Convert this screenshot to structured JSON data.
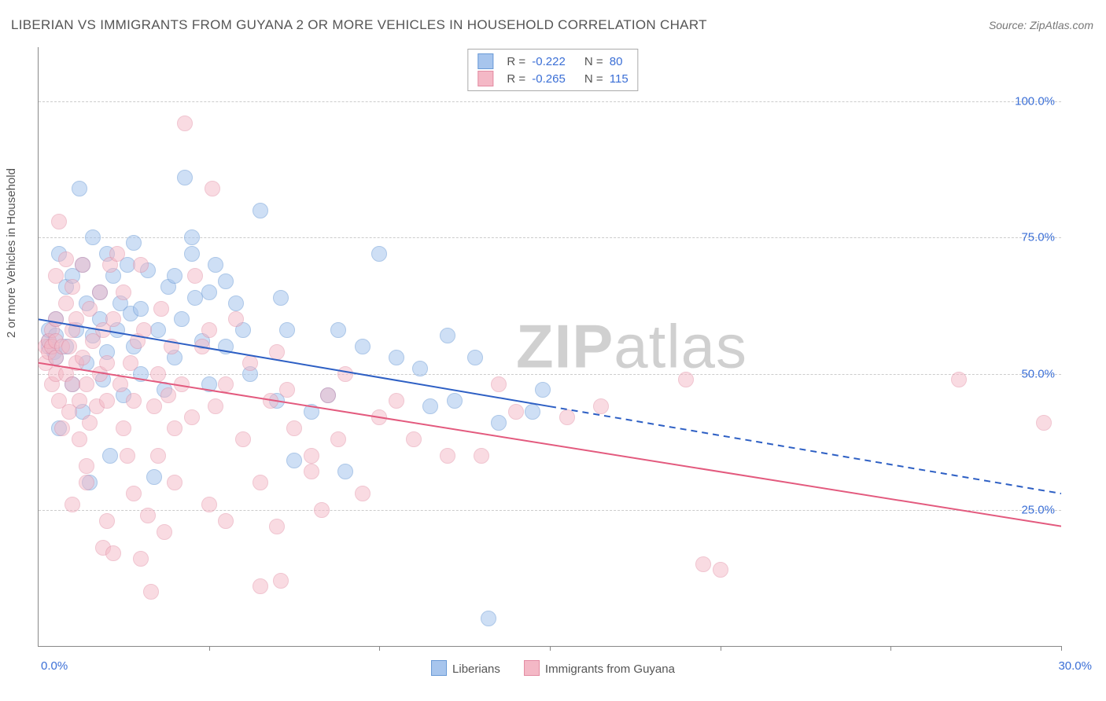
{
  "title": "LIBERIAN VS IMMIGRANTS FROM GUYANA 2 OR MORE VEHICLES IN HOUSEHOLD CORRELATION CHART",
  "source": "Source: ZipAtlas.com",
  "ylabel": "2 or more Vehicles in Household",
  "watermark_a": "ZIP",
  "watermark_b": "atlas",
  "chart": {
    "type": "scatter",
    "xlim": [
      0,
      30
    ],
    "ylim": [
      0,
      110
    ],
    "yticks": [
      {
        "v": 25,
        "label": "25.0%"
      },
      {
        "v": 50,
        "label": "50.0%"
      },
      {
        "v": 75,
        "label": "75.0%"
      },
      {
        "v": 100,
        "label": "100.0%"
      }
    ],
    "xtick_marks": [
      5,
      10,
      15,
      20,
      25,
      30
    ],
    "xstart_label": "0.0%",
    "xend_label": "30.0%",
    "background_color": "#ffffff",
    "grid_color": "#cccccc",
    "axis_color": "#888888",
    "tick_label_color": "#3b6fd6",
    "marker_radius": 9,
    "marker_border": 1,
    "series": [
      {
        "key": "s1",
        "label": "Liberians",
        "R": "-0.222",
        "N": "80",
        "fill": "#a7c5ed",
        "stroke": "#6a9ad6",
        "fill_opacity": 0.55,
        "trend": {
          "x1": 0,
          "y1": 60,
          "x2": 15,
          "y2": 44,
          "x2_dash": 30,
          "y2_dash": 28,
          "color": "#2d5fc4",
          "width": 2
        },
        "points": [
          [
            0.3,
            56
          ],
          [
            0.3,
            55
          ],
          [
            0.3,
            58
          ],
          [
            0.45,
            54
          ],
          [
            0.5,
            53
          ],
          [
            0.5,
            57
          ],
          [
            0.5,
            60
          ],
          [
            0.6,
            72
          ],
          [
            0.6,
            40
          ],
          [
            0.8,
            55
          ],
          [
            0.8,
            66
          ],
          [
            1.0,
            48
          ],
          [
            1.0,
            68
          ],
          [
            1.1,
            58
          ],
          [
            1.2,
            84
          ],
          [
            1.3,
            43
          ],
          [
            1.3,
            70
          ],
          [
            1.4,
            52
          ],
          [
            1.4,
            63
          ],
          [
            1.5,
            30
          ],
          [
            1.6,
            75
          ],
          [
            1.6,
            57
          ],
          [
            1.8,
            65
          ],
          [
            1.8,
            60
          ],
          [
            1.9,
            49
          ],
          [
            2.0,
            54
          ],
          [
            2.0,
            72
          ],
          [
            2.1,
            35
          ],
          [
            2.2,
            68
          ],
          [
            2.3,
            58
          ],
          [
            2.4,
            63
          ],
          [
            2.5,
            46
          ],
          [
            2.6,
            70
          ],
          [
            2.7,
            61
          ],
          [
            2.8,
            55
          ],
          [
            2.8,
            74
          ],
          [
            3.0,
            50
          ],
          [
            3.0,
            62
          ],
          [
            3.2,
            69
          ],
          [
            3.4,
            31
          ],
          [
            3.5,
            58
          ],
          [
            3.7,
            47
          ],
          [
            3.8,
            66
          ],
          [
            4.0,
            68
          ],
          [
            4.0,
            53
          ],
          [
            4.2,
            60
          ],
          [
            4.3,
            86
          ],
          [
            4.5,
            75
          ],
          [
            4.5,
            72
          ],
          [
            4.6,
            64
          ],
          [
            4.8,
            56
          ],
          [
            5.0,
            48
          ],
          [
            5.0,
            65
          ],
          [
            5.2,
            70
          ],
          [
            5.5,
            55
          ],
          [
            5.5,
            67
          ],
          [
            5.8,
            63
          ],
          [
            6.0,
            58
          ],
          [
            6.2,
            50
          ],
          [
            6.5,
            80
          ],
          [
            7.0,
            45
          ],
          [
            7.1,
            64
          ],
          [
            7.3,
            58
          ],
          [
            7.5,
            34
          ],
          [
            8.0,
            43
          ],
          [
            8.5,
            46
          ],
          [
            8.8,
            58
          ],
          [
            9.0,
            32
          ],
          [
            9.5,
            55
          ],
          [
            10.0,
            72
          ],
          [
            10.5,
            53
          ],
          [
            11.2,
            51
          ],
          [
            11.5,
            44
          ],
          [
            12.0,
            57
          ],
          [
            12.2,
            45
          ],
          [
            12.8,
            53
          ],
          [
            13.2,
            5
          ],
          [
            13.5,
            41
          ],
          [
            14.5,
            43
          ],
          [
            14.8,
            47
          ]
        ]
      },
      {
        "key": "s2",
        "label": "Immigrants from Guyana",
        "R": "-0.265",
        "N": "115",
        "fill": "#f4b8c6",
        "stroke": "#e38ca3",
        "fill_opacity": 0.5,
        "trend": {
          "x1": 0,
          "y1": 52,
          "x2": 30,
          "y2": 22,
          "color": "#e35a7e",
          "width": 2
        },
        "points": [
          [
            0.2,
            55
          ],
          [
            0.2,
            52
          ],
          [
            0.3,
            54
          ],
          [
            0.3,
            56
          ],
          [
            0.4,
            48
          ],
          [
            0.4,
            55
          ],
          [
            0.4,
            58
          ],
          [
            0.5,
            56
          ],
          [
            0.5,
            53
          ],
          [
            0.5,
            50
          ],
          [
            0.5,
            60
          ],
          [
            0.5,
            68
          ],
          [
            0.6,
            78
          ],
          [
            0.6,
            45
          ],
          [
            0.7,
            40
          ],
          [
            0.7,
            55
          ],
          [
            0.8,
            50
          ],
          [
            0.8,
            63
          ],
          [
            0.8,
            71
          ],
          [
            0.9,
            43
          ],
          [
            0.9,
            55
          ],
          [
            1.0,
            48
          ],
          [
            1.0,
            26
          ],
          [
            1.0,
            58
          ],
          [
            1.0,
            66
          ],
          [
            1.1,
            52
          ],
          [
            1.1,
            60
          ],
          [
            1.2,
            38
          ],
          [
            1.2,
            45
          ],
          [
            1.3,
            53
          ],
          [
            1.3,
            70
          ],
          [
            1.4,
            30
          ],
          [
            1.4,
            33
          ],
          [
            1.4,
            48
          ],
          [
            1.5,
            62
          ],
          [
            1.5,
            41
          ],
          [
            1.6,
            56
          ],
          [
            1.7,
            44
          ],
          [
            1.8,
            50
          ],
          [
            1.8,
            65
          ],
          [
            1.9,
            18
          ],
          [
            1.9,
            58
          ],
          [
            2.0,
            23
          ],
          [
            2.0,
            45
          ],
          [
            2.0,
            52
          ],
          [
            2.1,
            70
          ],
          [
            2.2,
            17
          ],
          [
            2.2,
            60
          ],
          [
            2.3,
            72
          ],
          [
            2.4,
            48
          ],
          [
            2.5,
            40
          ],
          [
            2.5,
            65
          ],
          [
            2.6,
            35
          ],
          [
            2.7,
            52
          ],
          [
            2.8,
            28
          ],
          [
            2.8,
            45
          ],
          [
            2.9,
            56
          ],
          [
            3.0,
            16
          ],
          [
            3.0,
            70
          ],
          [
            3.1,
            58
          ],
          [
            3.2,
            24
          ],
          [
            3.3,
            10
          ],
          [
            3.4,
            44
          ],
          [
            3.5,
            50
          ],
          [
            3.5,
            35
          ],
          [
            3.6,
            62
          ],
          [
            3.7,
            21
          ],
          [
            3.8,
            46
          ],
          [
            3.9,
            55
          ],
          [
            4.0,
            40
          ],
          [
            4.0,
            30
          ],
          [
            4.2,
            48
          ],
          [
            4.3,
            96
          ],
          [
            4.5,
            42
          ],
          [
            4.6,
            68
          ],
          [
            4.8,
            55
          ],
          [
            5.0,
            58
          ],
          [
            5.0,
            26
          ],
          [
            5.1,
            84
          ],
          [
            5.2,
            44
          ],
          [
            5.5,
            23
          ],
          [
            5.5,
            48
          ],
          [
            5.8,
            60
          ],
          [
            6.0,
            38
          ],
          [
            6.2,
            52
          ],
          [
            6.5,
            11
          ],
          [
            6.5,
            30
          ],
          [
            6.8,
            45
          ],
          [
            7.0,
            54
          ],
          [
            7.0,
            22
          ],
          [
            7.1,
            12
          ],
          [
            7.3,
            47
          ],
          [
            7.5,
            40
          ],
          [
            8.0,
            32
          ],
          [
            8.0,
            35
          ],
          [
            8.3,
            25
          ],
          [
            8.5,
            46
          ],
          [
            8.8,
            38
          ],
          [
            9.0,
            50
          ],
          [
            9.5,
            28
          ],
          [
            10.0,
            42
          ],
          [
            10.5,
            45
          ],
          [
            11.0,
            38
          ],
          [
            12.0,
            35
          ],
          [
            13.0,
            35
          ],
          [
            13.5,
            48
          ],
          [
            14.0,
            43
          ],
          [
            15.5,
            42
          ],
          [
            16.5,
            44
          ],
          [
            19.0,
            49
          ],
          [
            19.5,
            15
          ],
          [
            20.0,
            14
          ],
          [
            27.0,
            49
          ],
          [
            29.5,
            41
          ]
        ]
      }
    ]
  },
  "legend_top": {
    "rows": [
      {
        "swatch": "s1",
        "R_label": "R =",
        "R": "-0.222",
        "N_label": "N =",
        "N": "80"
      },
      {
        "swatch": "s2",
        "R_label": "R =",
        "R": "-0.265",
        "N_label": "N =",
        "N": "115"
      }
    ]
  },
  "legend_bottom": {
    "items": [
      {
        "swatch": "s1",
        "label": "Liberians"
      },
      {
        "swatch": "s2",
        "label": "Immigrants from Guyana"
      }
    ]
  }
}
